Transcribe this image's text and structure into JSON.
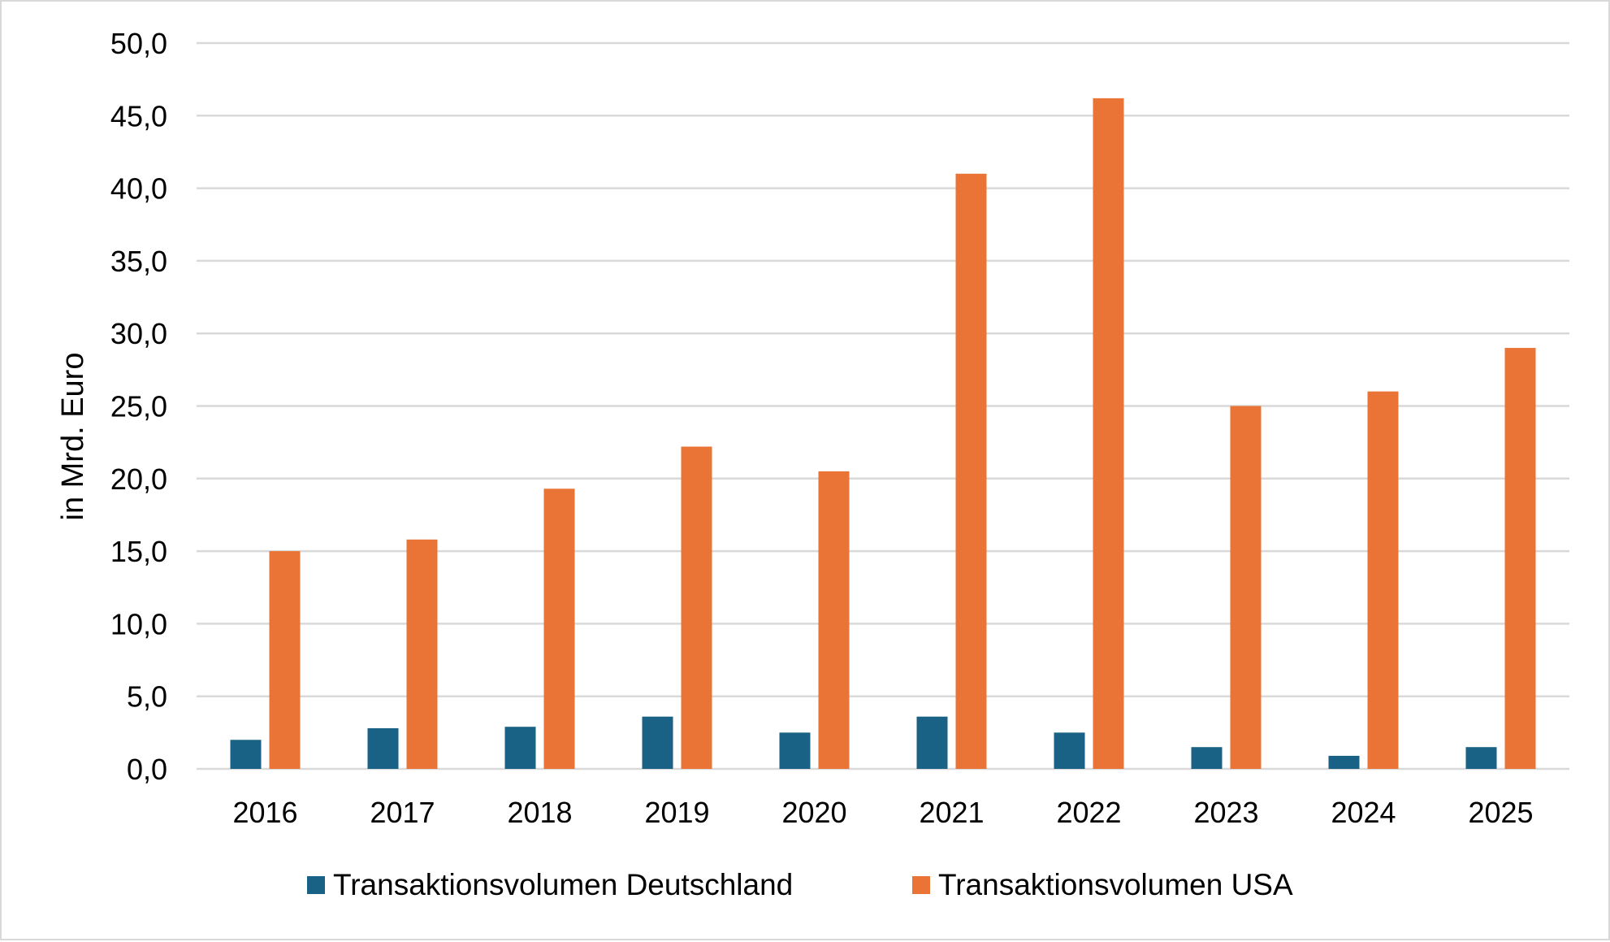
{
  "chart_data": {
    "type": "bar",
    "title": "",
    "xlabel": "",
    "ylabel": "in Mrd. Euro",
    "ylim": [
      0,
      50
    ],
    "yticks": [
      "0,0",
      "5,0",
      "10,0",
      "15,0",
      "20,0",
      "25,0",
      "30,0",
      "35,0",
      "40,0",
      "45,0",
      "50,0"
    ],
    "categories": [
      "2016",
      "2017",
      "2018",
      "2019",
      "2020",
      "2021",
      "2022",
      "2023",
      "2024",
      "2025"
    ],
    "grid": true,
    "legend_position": "bottom",
    "series": [
      {
        "name": "Transaktionsvolumen Deutschland",
        "color": "#1a6285",
        "values": [
          2.0,
          2.8,
          2.9,
          3.6,
          2.5,
          3.6,
          2.5,
          1.5,
          0.9,
          1.5
        ]
      },
      {
        "name": "Transaktionsvolumen USA",
        "color": "#e97435",
        "values": [
          15.0,
          15.8,
          19.3,
          22.2,
          20.5,
          41.0,
          46.2,
          25.0,
          26.0,
          29.0
        ]
      }
    ]
  }
}
